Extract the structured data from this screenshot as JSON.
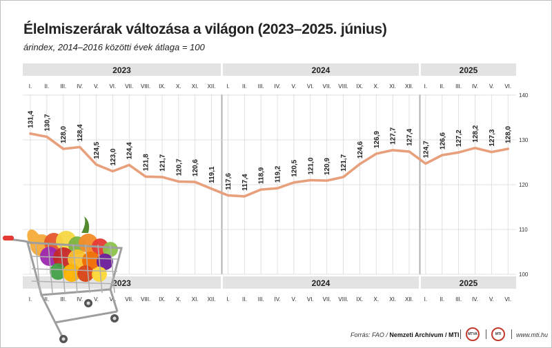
{
  "header": {
    "title": "Élelmiszerárak változása a világon (2023–2025. június)",
    "subtitle": "árindex, 2014–2016 közötti évek átlaga = 100"
  },
  "footer": {
    "source_prefix": "Forrás: FAO / ",
    "source_org": "Nemzeti Archívum / MTI",
    "logo1": "MTVA",
    "logo2": "MTI",
    "site": "www.mti.hu"
  },
  "illustration": "shopping-cart-with-groceries",
  "colors": {
    "line": "#e8a07c",
    "band": "#e3e3e3",
    "grid": "#d9d9d9",
    "logo_ring": "#c0392b"
  },
  "chart_data": {
    "type": "line",
    "title": "Élelmiszerárak változása a világon (2023–2025. június)",
    "subtitle": "árindex, 2014–2016 közötti évek átlaga = 100",
    "years": [
      "2023",
      "2024",
      "2025"
    ],
    "months": [
      "I.",
      "II.",
      "III.",
      "IV.",
      "V.",
      "VI.",
      "VII.",
      "VIII.",
      "IX.",
      "X.",
      "XI.",
      "XII."
    ],
    "categories": [
      "2023 I.",
      "2023 II.",
      "2023 III.",
      "2023 IV.",
      "2023 V.",
      "2023 VI.",
      "2023 VII.",
      "2023 VIII.",
      "2023 IX.",
      "2023 X.",
      "2023 XI.",
      "2023 XII.",
      "2024 I.",
      "2024 II.",
      "2024 III.",
      "2024 IV.",
      "2024 V.",
      "2024 VI.",
      "2024 VII.",
      "2024 VIII.",
      "2024 IX.",
      "2024 X.",
      "2024 XI.",
      "2024 XII.",
      "2025 I.",
      "2025 II.",
      "2025 III.",
      "2025 IV.",
      "2025 V.",
      "2025 VI."
    ],
    "values": [
      131.4,
      130.7,
      128.0,
      128.4,
      124.5,
      123.0,
      124.4,
      121.8,
      121.7,
      120.7,
      120.6,
      119.1,
      117.6,
      117.4,
      118.9,
      119.2,
      120.5,
      121.0,
      120.9,
      121.7,
      124.6,
      126.9,
      127.7,
      127.4,
      124.7,
      126.6,
      127.2,
      128.2,
      127.3,
      128.0
    ],
    "value_labels": [
      "131,4",
      "130,7",
      "128,0",
      "128,4",
      "124,5",
      "123,0",
      "124,4",
      "121,8",
      "121,7",
      "120,7",
      "120,6",
      "119,1",
      "117,6",
      "117,4",
      "118,9",
      "119,2",
      "120,5",
      "121,0",
      "120,9",
      "121,7",
      "124,6",
      "126,9",
      "127,7",
      "127,4",
      "124,7",
      "126,6",
      "127,2",
      "128,2",
      "127,3",
      "128,0"
    ],
    "yticks": [
      "140",
      "130",
      "120",
      "110",
      "100"
    ],
    "ylim": [
      100,
      140
    ],
    "grid": true
  }
}
